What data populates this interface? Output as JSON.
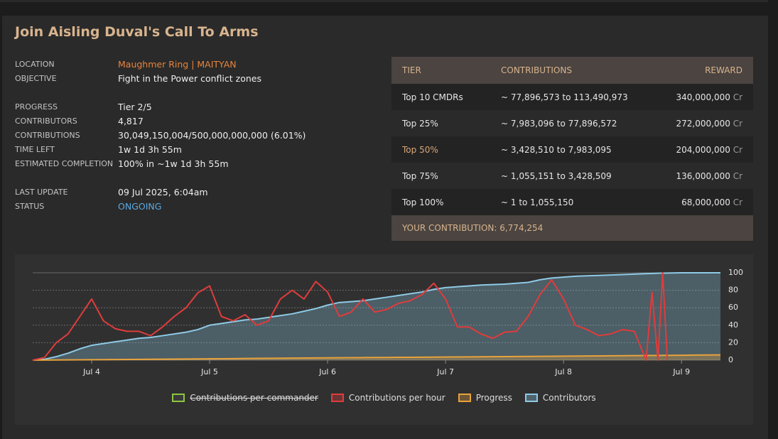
{
  "header": {
    "title": "Join Aisling Duval's Call To Arms"
  },
  "details": [
    [
      {
        "label": "LOCATION",
        "value": "Maughmer Ring | MAITYAN"
      },
      {
        "label": "OBJECTIVE",
        "value": "Fight in the Power conflict zones"
      }
    ],
    [
      {
        "label": "PROGRESS",
        "value": "Tier 2/5"
      },
      {
        "label": "CONTRIBUTORS",
        "value": "4,817"
      },
      {
        "label": "CONTRIBUTIONS",
        "value": "30,049,150,004/500,000,000,000 (6.01%)"
      },
      {
        "label": "TIME LEFT",
        "value": "1w 1d 3h 55m"
      },
      {
        "label": "ESTIMATED COMPLETION",
        "value": "100% in ~1w 1d 3h 55m"
      }
    ],
    [
      {
        "label": "LAST UPDATE",
        "value": "09 Jul 2025, 6:04am"
      },
      {
        "label": "STATUS",
        "value": "ONGOING"
      }
    ]
  ],
  "tiers": {
    "columns": [
      "TIER",
      "CONTRIBUTIONS",
      "REWARD"
    ],
    "rows": [
      {
        "tier": "Top 10 CMDRs",
        "contributions": "~ 77,896,573 to 113,490,973",
        "reward": "340,000,000",
        "unit": "Cr"
      },
      {
        "tier": "Top 25%",
        "contributions": "~ 7,983,096 to 77,896,572",
        "reward": "272,000,000",
        "unit": "Cr"
      },
      {
        "tier": "Top 50%",
        "contributions": "~ 3,428,510 to 7,983,095",
        "reward": "204,000,000",
        "unit": "Cr"
      },
      {
        "tier": "Top 75%",
        "contributions": "~ 1,055,151 to 3,428,509",
        "reward": "136,000,000",
        "unit": "Cr"
      },
      {
        "tier": "Top 100%",
        "contributions": "~ 1 to 1,055,150",
        "reward": "68,000,000",
        "unit": "Cr"
      }
    ],
    "highlight_row": 2,
    "footer": "YOUR CONTRIBUTION: 6,774,254"
  },
  "chart_data": {
    "type": "line",
    "x": [
      3.5,
      3.6,
      3.7,
      3.8,
      3.9,
      4.0,
      4.1,
      4.2,
      4.3,
      4.4,
      4.5,
      4.6,
      4.7,
      4.8,
      4.9,
      5.0,
      5.1,
      5.2,
      5.3,
      5.4,
      5.5,
      5.6,
      5.7,
      5.8,
      5.9,
      6.0,
      6.1,
      6.2,
      6.3,
      6.4,
      6.5,
      6.6,
      6.7,
      6.8,
      6.9,
      7.0,
      7.1,
      7.2,
      7.3,
      7.4,
      7.5,
      7.6,
      7.7,
      7.8,
      7.9,
      8.0,
      8.1,
      8.2,
      8.3,
      8.4,
      8.5,
      8.6,
      8.7,
      8.75,
      8.8,
      8.84,
      8.88,
      9.0,
      9.1,
      9.2,
      9.33
    ],
    "xlim": [
      3.5,
      9.33
    ],
    "xticks": [
      {
        "value": 4,
        "label": "Jul 4"
      },
      {
        "value": 5,
        "label": "Jul 5"
      },
      {
        "value": 6,
        "label": "Jul 6"
      },
      {
        "value": 7,
        "label": "Jul 7"
      },
      {
        "value": 8,
        "label": "Jul 8"
      },
      {
        "value": 9,
        "label": "Jul 9"
      }
    ],
    "ylim": [
      0,
      100
    ],
    "yticks": [
      0,
      20,
      40,
      60,
      80,
      100
    ],
    "grid": true,
    "series": [
      {
        "name": "Contributions per commander",
        "color": "#8dc63f",
        "hidden": true
      },
      {
        "name": "Contributions per hour",
        "color": "#e03c3c",
        "values": [
          0,
          3,
          20,
          30,
          50,
          70,
          45,
          36,
          33,
          33,
          28,
          38,
          50,
          60,
          77,
          85,
          50,
          45,
          52,
          40,
          45,
          70,
          80,
          70,
          90,
          78,
          50,
          55,
          70,
          55,
          58,
          65,
          68,
          75,
          88,
          70,
          38,
          38,
          30,
          25,
          32,
          33,
          50,
          75,
          92,
          70,
          40,
          35,
          28,
          30,
          35,
          33,
          0,
          78,
          0,
          100,
          0,
          null,
          null,
          null,
          null
        ]
      },
      {
        "name": "Progress",
        "color": "#e8a23c",
        "fill": true,
        "values": [
          0,
          0.1,
          0.2,
          0.3,
          0.4,
          0.5,
          0.6,
          0.7,
          0.8,
          0.9,
          1.0,
          1.1,
          1.2,
          1.3,
          1.4,
          1.5,
          1.6,
          1.7,
          1.9,
          2.0,
          2.1,
          2.2,
          2.3,
          2.4,
          2.5,
          2.6,
          2.7,
          2.8,
          2.9,
          3.0,
          3.1,
          3.2,
          3.3,
          3.4,
          3.5,
          3.6,
          3.7,
          3.8,
          3.9,
          4.0,
          4.1,
          4.2,
          4.3,
          4.4,
          4.5,
          4.6,
          4.7,
          4.8,
          4.9,
          5.0,
          5.1,
          5.2,
          5.3,
          5.4,
          5.4,
          5.5,
          5.5,
          5.6,
          5.8,
          5.9,
          6.0
        ]
      },
      {
        "name": "Contributors",
        "color": "#8ecae6",
        "fill": true,
        "values": [
          0,
          1,
          4,
          8,
          13,
          17,
          19,
          21,
          23,
          25,
          26,
          28,
          30,
          32,
          35,
          40,
          42,
          44,
          46,
          47,
          49,
          51,
          53,
          56,
          59,
          63,
          66,
          67,
          68,
          70,
          72,
          74,
          76,
          78,
          81,
          83,
          84,
          85,
          86,
          86.5,
          87,
          88,
          89,
          92,
          94,
          95,
          96,
          96.5,
          97,
          97.5,
          98,
          98.5,
          99,
          99.2,
          99.5,
          99.6,
          99.7,
          100,
          100,
          100,
          100
        ]
      }
    ]
  }
}
